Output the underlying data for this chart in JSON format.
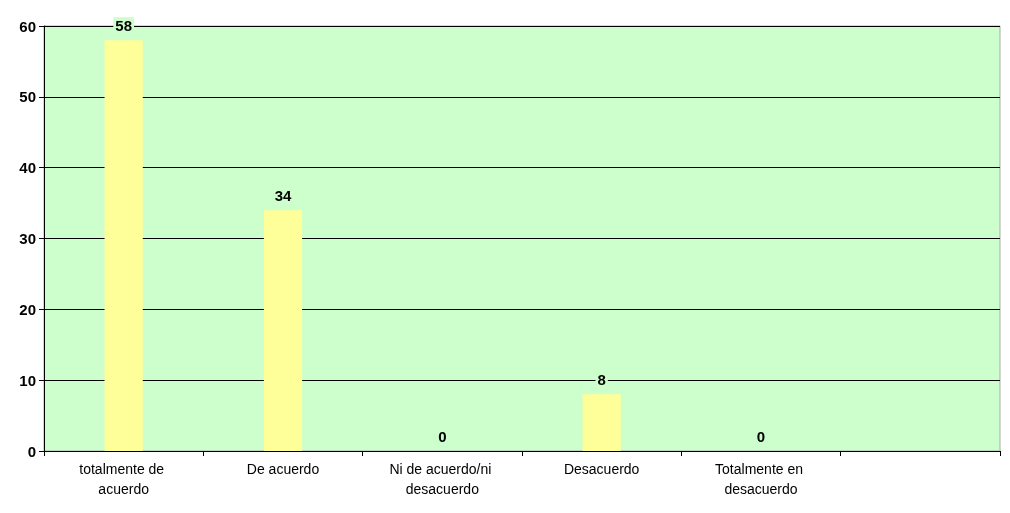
{
  "chart_data": {
    "type": "bar",
    "categories": [
      "totalmente de acuerdo",
      "De acuerdo",
      "Ni de acuerdo/ni desacuerdo",
      "Desacuerdo",
      "Totalmente en desacuerdo",
      null
    ],
    "values": [
      58,
      34,
      0,
      8,
      0,
      null
    ],
    "color": "#ffff99",
    "ylim": [
      0,
      60
    ],
    "yticks": [
      0,
      10,
      20,
      30,
      40,
      50,
      60
    ],
    "grid": "y",
    "data_labels": true
  }
}
